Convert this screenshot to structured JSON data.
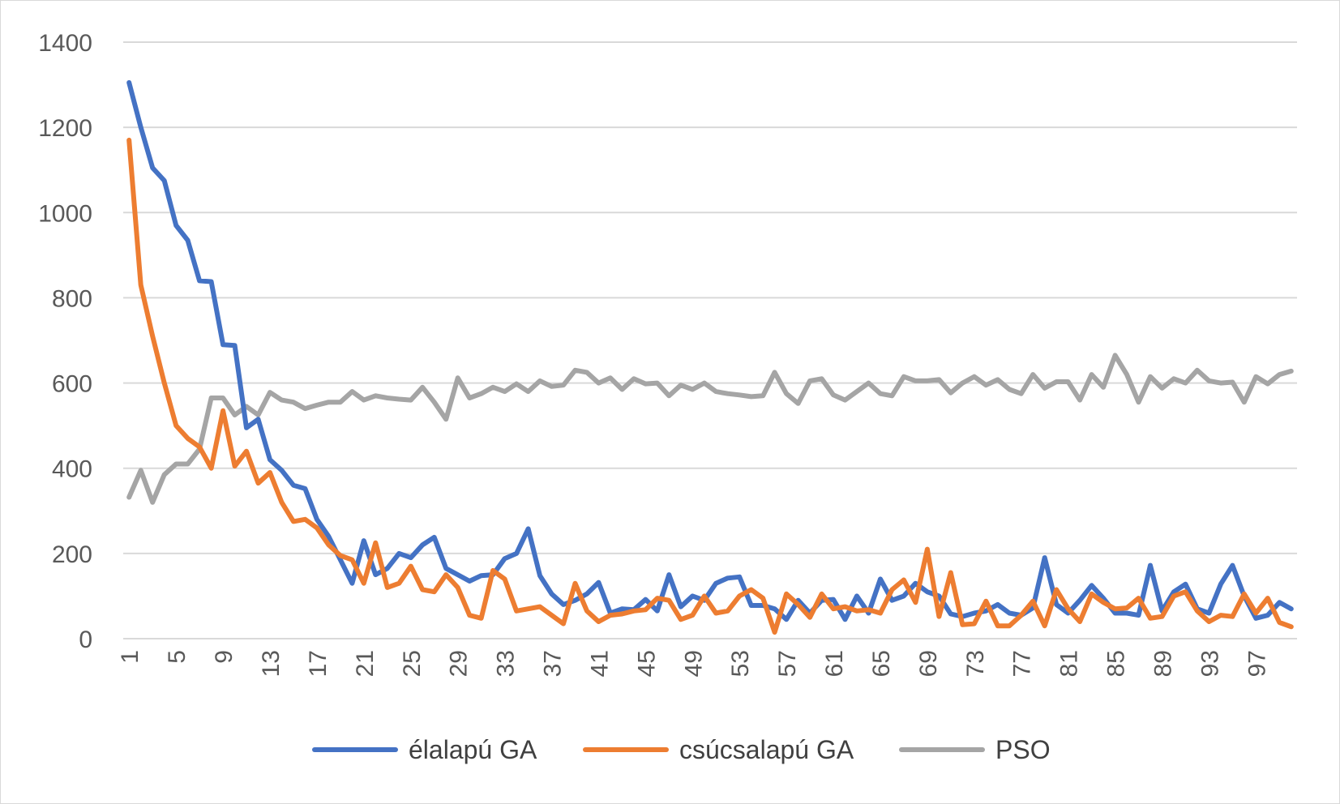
{
  "chart_data": {
    "type": "line",
    "title": "",
    "xlabel": "",
    "ylabel": "",
    "ylim": [
      0,
      1400
    ],
    "yticks": [
      0,
      200,
      400,
      600,
      800,
      1000,
      1200,
      1400
    ],
    "grid": true,
    "legend_position": "bottom",
    "x_tick_labels": [
      "1",
      "5",
      "9",
      "13",
      "17",
      "21",
      "25",
      "29",
      "33",
      "37",
      "41",
      "45",
      "49",
      "53",
      "57",
      "61",
      "65",
      "69",
      "73",
      "77",
      "81",
      "85",
      "89",
      "93",
      "97"
    ],
    "x": [
      1,
      2,
      3,
      4,
      5,
      6,
      7,
      8,
      9,
      10,
      11,
      12,
      13,
      14,
      15,
      16,
      17,
      18,
      19,
      20,
      21,
      22,
      23,
      24,
      25,
      26,
      27,
      28,
      29,
      30,
      31,
      32,
      33,
      34,
      35,
      36,
      37,
      38,
      39,
      40,
      41,
      42,
      43,
      44,
      45,
      46,
      47,
      48,
      49,
      50,
      51,
      52,
      53,
      54,
      55,
      56,
      57,
      58,
      59,
      60,
      61,
      62,
      63,
      64,
      65,
      66,
      67,
      68,
      69,
      70,
      71,
      72,
      73,
      74,
      75,
      76,
      77,
      78,
      79,
      80,
      81,
      82,
      83,
      84,
      85,
      86,
      87,
      88,
      89,
      90,
      91,
      92,
      93,
      94,
      95,
      96,
      97,
      98,
      99,
      100
    ],
    "series": [
      {
        "name": "élalapú GA",
        "color": "#4472c4",
        "values": [
          1305,
          1200,
          1105,
          1075,
          970,
          935,
          840,
          838,
          690,
          688,
          495,
          515,
          420,
          395,
          360,
          352,
          280,
          240,
          185,
          130,
          230,
          150,
          165,
          200,
          190,
          220,
          238,
          165,
          150,
          135,
          148,
          150,
          188,
          200,
          258,
          148,
          105,
          80,
          90,
          105,
          132,
          60,
          70,
          68,
          92,
          65,
          150,
          75,
          100,
          90,
          130,
          142,
          145,
          78,
          78,
          70,
          45,
          90,
          60,
          90,
          92,
          45,
          100,
          60,
          140,
          90,
          100,
          130,
          110,
          100,
          58,
          52,
          60,
          65,
          80,
          60,
          55,
          72,
          190,
          80,
          60,
          90,
          125,
          95,
          60,
          60,
          55,
          172,
          65,
          110,
          128,
          70,
          60,
          128,
          172,
          100,
          48,
          55,
          85,
          70
        ]
      },
      {
        "name": "csúcsalapú GA",
        "color": "#ed7d31",
        "values": [
          1170,
          830,
          710,
          600,
          500,
          470,
          450,
          400,
          535,
          405,
          440,
          365,
          390,
          320,
          275,
          280,
          260,
          220,
          195,
          185,
          130,
          225,
          120,
          130,
          170,
          115,
          110,
          150,
          120,
          55,
          48,
          160,
          140,
          65,
          70,
          75,
          55,
          35,
          130,
          65,
          40,
          55,
          58,
          65,
          68,
          95,
          90,
          45,
          55,
          100,
          60,
          65,
          100,
          115,
          95,
          15,
          105,
          80,
          50,
          105,
          70,
          75,
          65,
          68,
          60,
          115,
          138,
          85,
          210,
          52,
          155,
          33,
          35,
          88,
          30,
          30,
          55,
          88,
          30,
          115,
          70,
          40,
          105,
          85,
          70,
          72,
          95,
          48,
          52,
          100,
          110,
          65,
          40,
          55,
          52,
          105,
          60,
          95,
          38,
          28
        ]
      },
      {
        "name": "PSO",
        "color": "#a5a5a5",
        "values": [
          332,
          395,
          320,
          385,
          410,
          410,
          445,
          565,
          565,
          525,
          545,
          525,
          578,
          560,
          555,
          540,
          548,
          555,
          555,
          580,
          560,
          570,
          565,
          562,
          560,
          590,
          555,
          515,
          612,
          565,
          575,
          590,
          580,
          598,
          580,
          605,
          592,
          595,
          630,
          625,
          600,
          612,
          585,
          610,
          598,
          600,
          570,
          595,
          585,
          600,
          580,
          575,
          572,
          568,
          570,
          625,
          575,
          552,
          605,
          610,
          572,
          560,
          580,
          600,
          575,
          570,
          615,
          605,
          605,
          608,
          577,
          600,
          615,
          595,
          608,
          585,
          575,
          620,
          588,
          603,
          603,
          560,
          620,
          590,
          665,
          620,
          555,
          615,
          588,
          610,
          600,
          630,
          605,
          600,
          602,
          555,
          615,
          598,
          620,
          628
        ]
      }
    ]
  }
}
